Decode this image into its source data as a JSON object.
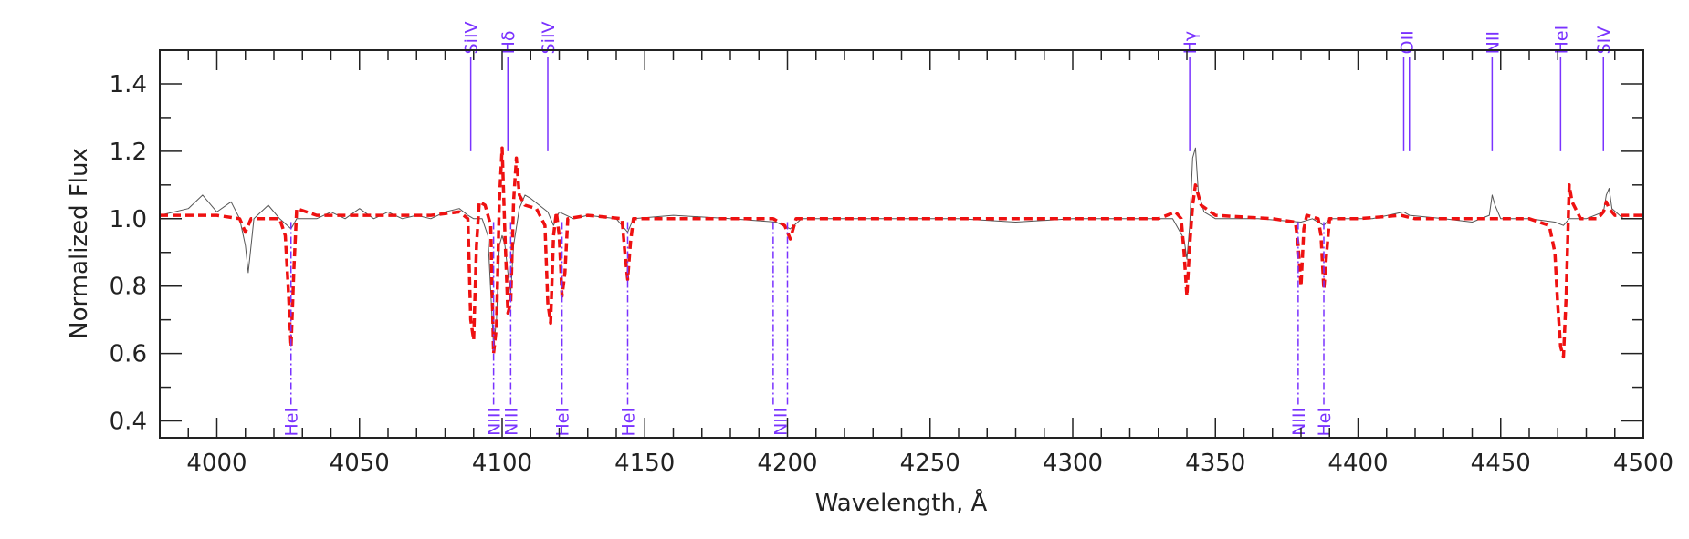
{
  "chart_data": {
    "type": "line",
    "title": "",
    "xlabel": "Wavelength, Å",
    "ylabel": "Normalized Flux",
    "xlim": [
      3980,
      4500
    ],
    "ylim": [
      0.35,
      1.5
    ],
    "x_ticks": [
      4000,
      4050,
      4100,
      4150,
      4200,
      4250,
      4300,
      4350,
      4400,
      4450,
      4500
    ],
    "y_ticks": [
      0.4,
      0.6,
      0.8,
      1.0,
      1.2,
      1.4
    ],
    "x_tick_labels": [
      "4000",
      "4050",
      "4100",
      "4150",
      "4200",
      "4250",
      "4300",
      "4350",
      "4400",
      "4450",
      "4500"
    ],
    "y_tick_labels": [
      "0.4",
      "0.6",
      "0.8",
      "1.0",
      "1.2",
      "1.4"
    ],
    "grid": false,
    "series": [
      {
        "style": "solid",
        "color": "#555555",
        "points": [
          [
            3980,
            1.01
          ],
          [
            3990,
            1.03
          ],
          [
            3995,
            1.07
          ],
          [
            4000,
            1.02
          ],
          [
            4005,
            1.05
          ],
          [
            4008,
            1.0
          ],
          [
            4010,
            0.92
          ],
          [
            4011,
            0.84
          ],
          [
            4013,
            1.0
          ],
          [
            4018,
            1.04
          ],
          [
            4022,
            1.0
          ],
          [
            4026,
            0.97
          ],
          [
            4028,
            1.0
          ],
          [
            4035,
            1.0
          ],
          [
            4040,
            1.02
          ],
          [
            4045,
            1.0
          ],
          [
            4050,
            1.03
          ],
          [
            4055,
            1.0
          ],
          [
            4060,
            1.02
          ],
          [
            4065,
            1.0
          ],
          [
            4070,
            1.01
          ],
          [
            4075,
            1.0
          ],
          [
            4080,
            1.02
          ],
          [
            4085,
            1.03
          ],
          [
            4088,
            1.01
          ],
          [
            4090,
            1.0
          ],
          [
            4093,
            1.0
          ],
          [
            4095,
            0.95
          ],
          [
            4097,
            0.62
          ],
          [
            4098,
            0.7
          ],
          [
            4099,
            0.92
          ],
          [
            4100,
            0.95
          ],
          [
            4101,
            0.92
          ],
          [
            4102,
            0.84
          ],
          [
            4103,
            0.78
          ],
          [
            4104,
            0.92
          ],
          [
            4106,
            1.03
          ],
          [
            4108,
            1.07
          ],
          [
            4110,
            1.06
          ],
          [
            4113,
            1.04
          ],
          [
            4116,
            1.02
          ],
          [
            4118,
            0.98
          ],
          [
            4120,
            1.02
          ],
          [
            4125,
            1.0
          ],
          [
            4130,
            1.01
          ],
          [
            4140,
            1.0
          ],
          [
            4144,
            0.96
          ],
          [
            4146,
            1.0
          ],
          [
            4160,
            1.01
          ],
          [
            4180,
            1.0
          ],
          [
            4196,
            0.99
          ],
          [
            4201,
            0.97
          ],
          [
            4205,
            1.0
          ],
          [
            4220,
            1.0
          ],
          [
            4240,
            1.0
          ],
          [
            4260,
            1.0
          ],
          [
            4280,
            0.99
          ],
          [
            4300,
            1.0
          ],
          [
            4320,
            1.0
          ],
          [
            4335,
            1.0
          ],
          [
            4339,
            0.94
          ],
          [
            4340,
            0.88
          ],
          [
            4341,
            0.98
          ],
          [
            4342,
            1.18
          ],
          [
            4343,
            1.21
          ],
          [
            4344,
            1.08
          ],
          [
            4346,
            1.02
          ],
          [
            4350,
            1.0
          ],
          [
            4365,
            1.0
          ],
          [
            4380,
            0.99
          ],
          [
            4384,
            1.0
          ],
          [
            4388,
            0.98
          ],
          [
            4390,
            1.0
          ],
          [
            4405,
            1.0
          ],
          [
            4416,
            1.02
          ],
          [
            4418,
            1.01
          ],
          [
            4430,
            1.0
          ],
          [
            4440,
            0.99
          ],
          [
            4446,
            1.01
          ],
          [
            4447,
            1.07
          ],
          [
            4448,
            1.04
          ],
          [
            4450,
            1.0
          ],
          [
            4460,
            1.0
          ],
          [
            4469,
            0.99
          ],
          [
            4472,
            0.98
          ],
          [
            4474,
            1.0
          ],
          [
            4480,
            1.0
          ],
          [
            4486,
            1.02
          ],
          [
            4487,
            1.07
          ],
          [
            4488,
            1.09
          ],
          [
            4489,
            1.03
          ],
          [
            4493,
            1.0
          ],
          [
            4500,
            1.0
          ]
        ]
      },
      {
        "style": "dashed",
        "color": "#ee1111",
        "points": [
          [
            3980,
            1.01
          ],
          [
            4000,
            1.01
          ],
          [
            4008,
            1.0
          ],
          [
            4010,
            0.96
          ],
          [
            4012,
            1.0
          ],
          [
            4022,
            1.0
          ],
          [
            4024,
            0.95
          ],
          [
            4025,
            0.8
          ],
          [
            4026,
            0.62
          ],
          [
            4027,
            0.85
          ],
          [
            4028,
            1.03
          ],
          [
            4035,
            1.01
          ],
          [
            4060,
            1.01
          ],
          [
            4075,
            1.01
          ],
          [
            4085,
            1.02
          ],
          [
            4088,
            1.0
          ],
          [
            4089,
            0.7
          ],
          [
            4090,
            0.64
          ],
          [
            4091,
            0.92
          ],
          [
            4092,
            1.05
          ],
          [
            4094,
            1.04
          ],
          [
            4096,
            0.98
          ],
          [
            4097,
            0.6
          ],
          [
            4098,
            0.68
          ],
          [
            4099,
            1.05
          ],
          [
            4100,
            1.21
          ],
          [
            4101,
            0.95
          ],
          [
            4102,
            0.72
          ],
          [
            4103,
            0.75
          ],
          [
            4104,
            1.05
          ],
          [
            4105,
            1.18
          ],
          [
            4106,
            1.07
          ],
          [
            4108,
            1.04
          ],
          [
            4112,
            1.03
          ],
          [
            4115,
            0.98
          ],
          [
            4116,
            0.75
          ],
          [
            4117,
            0.69
          ],
          [
            4118,
            0.95
          ],
          [
            4119,
            1.02
          ],
          [
            4120,
            0.95
          ],
          [
            4121,
            0.77
          ],
          [
            4122,
            0.84
          ],
          [
            4123,
            1.0
          ],
          [
            4130,
            1.01
          ],
          [
            4142,
            1.0
          ],
          [
            4143,
            0.9
          ],
          [
            4144,
            0.82
          ],
          [
            4145,
            0.93
          ],
          [
            4146,
            1.0
          ],
          [
            4170,
            1.0
          ],
          [
            4195,
            1.0
          ],
          [
            4199,
            0.98
          ],
          [
            4201,
            0.94
          ],
          [
            4203,
            1.0
          ],
          [
            4230,
            1.0
          ],
          [
            4260,
            1.0
          ],
          [
            4300,
            1.0
          ],
          [
            4330,
            1.0
          ],
          [
            4336,
            1.02
          ],
          [
            4338,
            1.0
          ],
          [
            4339,
            0.9
          ],
          [
            4340,
            0.77
          ],
          [
            4341,
            0.92
          ],
          [
            4342,
            1.04
          ],
          [
            4343,
            1.1
          ],
          [
            4345,
            1.04
          ],
          [
            4350,
            1.01
          ],
          [
            4370,
            1.0
          ],
          [
            4378,
            0.99
          ],
          [
            4379,
            0.92
          ],
          [
            4380,
            0.8
          ],
          [
            4381,
            0.97
          ],
          [
            4382,
            1.01
          ],
          [
            4386,
            1.0
          ],
          [
            4387,
            0.95
          ],
          [
            4388,
            0.79
          ],
          [
            4389,
            0.9
          ],
          [
            4390,
            1.0
          ],
          [
            4400,
            1.0
          ],
          [
            4415,
            1.01
          ],
          [
            4420,
            1.0
          ],
          [
            4440,
            1.0
          ],
          [
            4460,
            1.0
          ],
          [
            4467,
            0.98
          ],
          [
            4469,
            0.9
          ],
          [
            4470,
            0.74
          ],
          [
            4471,
            0.62
          ],
          [
            4472,
            0.59
          ],
          [
            4473,
            0.78
          ],
          [
            4474,
            1.1
          ],
          [
            4475,
            1.05
          ],
          [
            4478,
            1.0
          ],
          [
            4484,
            1.0
          ],
          [
            4486,
            1.02
          ],
          [
            4487,
            1.05
          ],
          [
            4488,
            1.03
          ],
          [
            4490,
            1.01
          ],
          [
            4500,
            1.01
          ]
        ]
      }
    ],
    "annotations_top": [
      {
        "label": "SiIV",
        "x": 4089
      },
      {
        "label": "Hδ",
        "x": 4102
      },
      {
        "label": "SiIV",
        "x": 4116
      },
      {
        "label": "Hγ",
        "x": 4341
      },
      {
        "label": "OII",
        "x": 4416,
        "x2": 4418
      },
      {
        "label": "NII",
        "x": 4447
      },
      {
        "label": "HeI",
        "x": 4471
      },
      {
        "label": "SIV",
        "x": 4486
      }
    ],
    "annotations_bottom": [
      {
        "label": "HeI",
        "x": 4026
      },
      {
        "label": "NIII",
        "x": 4097
      },
      {
        "label": "NIII",
        "x": 4103
      },
      {
        "label": "HeI",
        "x": 4121
      },
      {
        "label": "HeI",
        "x": 4144
      },
      {
        "label": "NIII",
        "x": 4195,
        "x2": 4200
      },
      {
        "label": "NIII",
        "x": 4379
      },
      {
        "label": "HeI",
        "x": 4388
      }
    ],
    "annotation_color": "#7a33ff"
  }
}
